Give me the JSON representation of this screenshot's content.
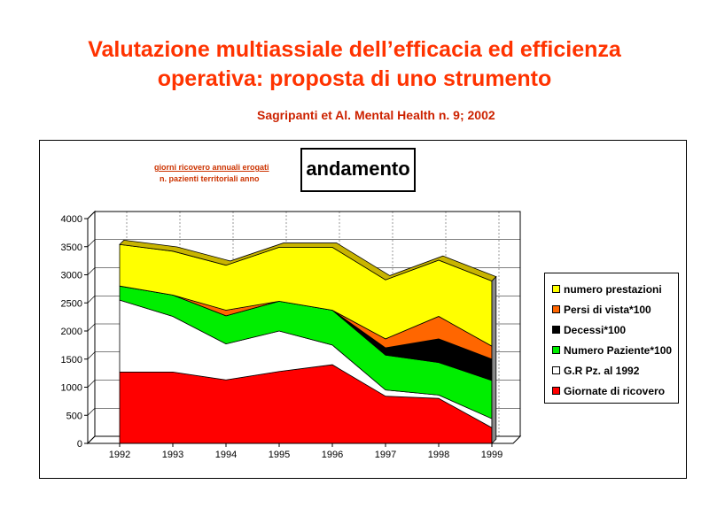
{
  "page": {
    "title_line1": "Valutazione multiassiale dell’efficacia ed efficienza",
    "title_line2": "operativa: proposta di uno strumento",
    "subtitle": "Sagripanti et Al. Mental Health n. 9; 2002",
    "note_line1": "giorni ricovero annuali erogati",
    "note_line2": "n. pazienti territoriali anno",
    "badge": "andamento"
  },
  "chart_data": {
    "type": "area",
    "stacked": true,
    "three_d": true,
    "categories": [
      "1992",
      "1993",
      "1994",
      "1995",
      "1996",
      "1997",
      "1998",
      "1999"
    ],
    "ylim": [
      0,
      4000
    ],
    "yticks": [
      "0",
      "500",
      "1000",
      "1500",
      "2000",
      "2500",
      "3000",
      "3500",
      "4000"
    ],
    "legend_position": "right",
    "series": [
      {
        "name": "Giornate di ricovero",
        "color": "#ff0000",
        "values": [
          1270,
          1270,
          1130,
          1280,
          1400,
          840,
          800,
          280
        ]
      },
      {
        "name": "G.R Pz. al 1992",
        "color": "#ffffff",
        "values": [
          1280,
          990,
          640,
          720,
          350,
          110,
          60,
          160
        ]
      },
      {
        "name": "Numero Paziente*100",
        "color": "#00ee00",
        "values": [
          250,
          380,
          500,
          530,
          620,
          620,
          580,
          680
        ]
      },
      {
        "name": "Decessi*100",
        "color": "#000000",
        "values": [
          0,
          0,
          0,
          0,
          0,
          130,
          420,
          380
        ]
      },
      {
        "name": "Persi di vista*100",
        "color": "#ff6600",
        "values": [
          0,
          0,
          100,
          0,
          0,
          160,
          400,
          230
        ]
      },
      {
        "name": "numero prestazioni",
        "color": "#ffff00",
        "values": [
          740,
          780,
          800,
          960,
          1120,
          1050,
          1000,
          1160
        ]
      }
    ]
  }
}
